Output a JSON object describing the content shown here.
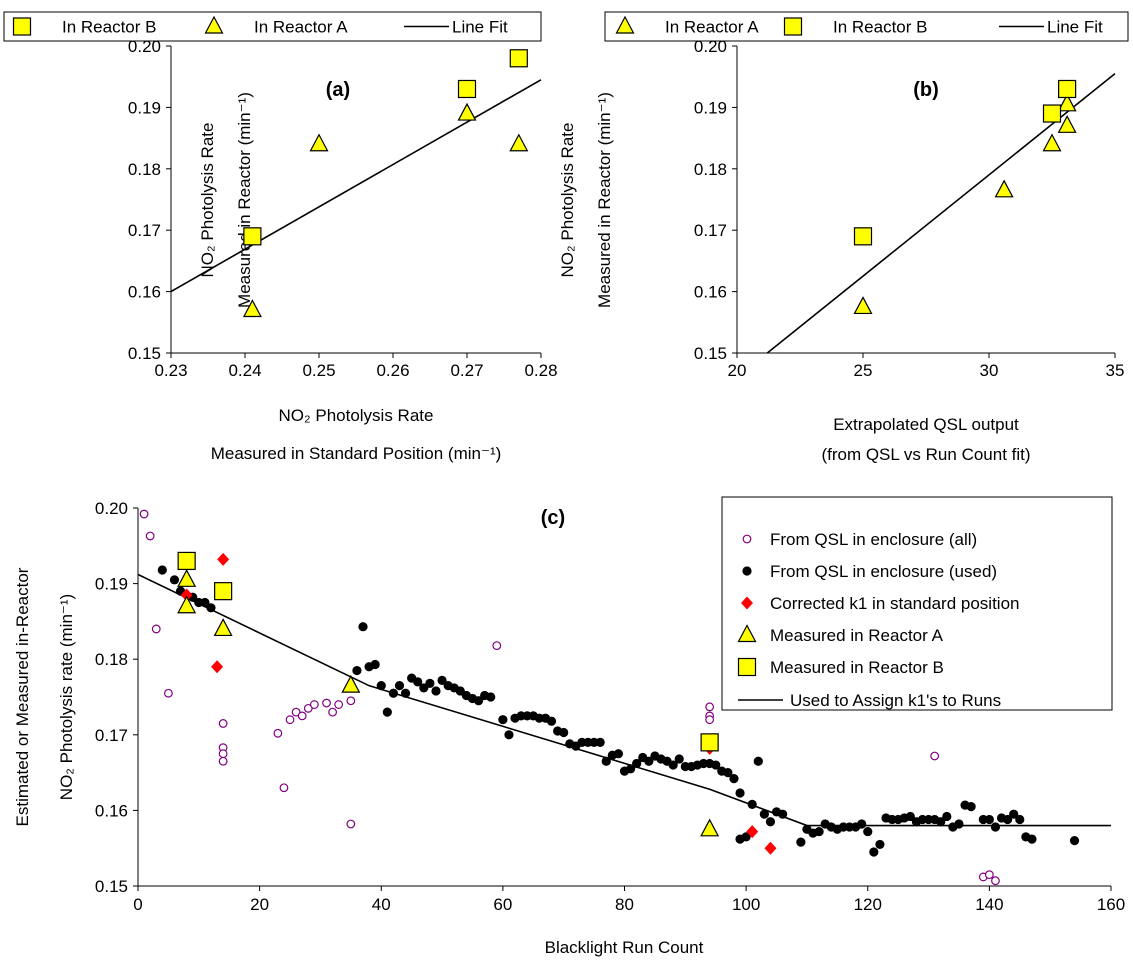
{
  "chart_data": [
    {
      "id": "a",
      "type": "scatter",
      "panel_label": "(a)",
      "xlabel": "NO₂ Photolysis Rate",
      "xlabel_line2": "Measured in Standard Position (min⁻¹)",
      "ylabel": "NO₂ Photolysis Rate",
      "ylabel_line2": "Measured in Reactor (min⁻¹)",
      "xlim": [
        0.23,
        0.28
      ],
      "ylim": [
        0.15,
        0.2
      ],
      "xticks": [
        "0.23",
        "0.24",
        "0.25",
        "0.26",
        "0.27",
        "0.28"
      ],
      "yticks": [
        "0.15",
        "0.16",
        "0.17",
        "0.18",
        "0.19",
        "0.20"
      ],
      "legend": [
        "In Reactor B",
        "In Reactor A",
        "Line Fit"
      ],
      "series": [
        {
          "name": "In Reactor B",
          "marker": "square",
          "color": "#ffff00",
          "points": [
            [
              0.241,
              0.169
            ],
            [
              0.27,
              0.193
            ],
            [
              0.277,
              0.198
            ]
          ]
        },
        {
          "name": "In Reactor A",
          "marker": "triangle",
          "color": "#ffff00",
          "points": [
            [
              0.241,
              0.157
            ],
            [
              0.25,
              0.184
            ],
            [
              0.27,
              0.189
            ],
            [
              0.277,
              0.184
            ]
          ]
        },
        {
          "name": "Line Fit",
          "marker": "line",
          "color": "#000000",
          "points": [
            [
              0.23,
              0.16
            ],
            [
              0.28,
              0.1945
            ]
          ]
        }
      ]
    },
    {
      "id": "b",
      "type": "scatter",
      "panel_label": "(b)",
      "xlabel": "Extrapolated QSL output",
      "xlabel_line2": "(from QSL vs Run Count fit)",
      "ylabel": "NO₂ Photolysis Rate",
      "ylabel_line2": "Measured in Reactor (min⁻¹)",
      "xlim": [
        20,
        35
      ],
      "ylim": [
        0.15,
        0.2
      ],
      "xticks": [
        "20",
        "25",
        "30",
        "35"
      ],
      "yticks": [
        "0.15",
        "0.16",
        "0.17",
        "0.18",
        "0.19",
        "0.20"
      ],
      "legend": [
        "In Reactor A",
        "In Reactor B",
        "Line Fit"
      ],
      "series": [
        {
          "name": "In Reactor A",
          "marker": "triangle",
          "color": "#ffff00",
          "points": [
            [
              25,
              0.1575
            ],
            [
              30.6,
              0.1765
            ],
            [
              32.5,
              0.184
            ],
            [
              33.1,
              0.187
            ],
            [
              33.1,
              0.1905
            ]
          ]
        },
        {
          "name": "In Reactor B",
          "marker": "square",
          "color": "#ffff00",
          "points": [
            [
              25,
              0.169
            ],
            [
              32.5,
              0.189
            ],
            [
              33.1,
              0.193
            ]
          ]
        },
        {
          "name": "Line Fit",
          "marker": "line",
          "color": "#000000",
          "points": [
            [
              20.9,
              0.149
            ],
            [
              35,
              0.1955
            ]
          ]
        }
      ]
    },
    {
      "id": "c",
      "type": "scatter",
      "panel_label": "(c)",
      "xlabel": "Blacklight Run Count",
      "ylabel": "Estimated or Measured in-Reactor",
      "ylabel_line2": "NO₂ Photolysis rate (min⁻¹)",
      "xlim": [
        0,
        160
      ],
      "ylim": [
        0.15,
        0.2
      ],
      "xticks": [
        "0",
        "20",
        "40",
        "60",
        "80",
        "100",
        "120",
        "140",
        "160"
      ],
      "yticks": [
        "0.15",
        "0.16",
        "0.17",
        "0.18",
        "0.19",
        "0.20"
      ],
      "legend": [
        "From QSL in enclosure (all)",
        "From QSL in enclosure (used)",
        "Corrected k1 in standard position",
        "Measured in Reactor A",
        "Measured in Reactor B",
        "Used to Assign k1's to Runs"
      ],
      "series": [
        {
          "name": "From QSL in enclosure (all)",
          "marker": "open-circle",
          "color": "#800080",
          "points": [
            [
              1,
              0.1992
            ],
            [
              2,
              0.1963
            ],
            [
              3,
              0.184
            ],
            [
              5,
              0.1755
            ],
            [
              14,
              0.1715
            ],
            [
              14,
              0.1683
            ],
            [
              14,
              0.1675
            ],
            [
              14,
              0.1665
            ],
            [
              23,
              0.1702
            ],
            [
              24,
              0.163
            ],
            [
              25,
              0.172
            ],
            [
              26,
              0.173
            ],
            [
              27,
              0.1725
            ],
            [
              28,
              0.1735
            ],
            [
              29,
              0.174
            ],
            [
              31,
              0.1742
            ],
            [
              32,
              0.173
            ],
            [
              33,
              0.174
            ],
            [
              35,
              0.1745
            ],
            [
              35,
              0.1582
            ],
            [
              59,
              0.1818
            ],
            [
              94,
              0.1737
            ],
            [
              94,
              0.1725
            ],
            [
              94,
              0.172
            ],
            [
              131,
              0.1672
            ],
            [
              139,
              0.1512
            ],
            [
              140,
              0.1515
            ],
            [
              141,
              0.1507
            ]
          ]
        },
        {
          "name": "From QSL in enclosure (used)",
          "marker": "filled-circle",
          "color": "#000000",
          "points": [
            [
              4,
              0.1918
            ],
            [
              6,
              0.1905
            ],
            [
              7,
              0.189
            ],
            [
              9,
              0.1882
            ],
            [
              10,
              0.1875
            ],
            [
              11,
              0.1875
            ],
            [
              12,
              0.1868
            ],
            [
              36,
              0.1785
            ],
            [
              37,
              0.1843
            ],
            [
              38,
              0.179
            ],
            [
              39,
              0.1793
            ],
            [
              40,
              0.1765
            ],
            [
              41,
              0.173
            ],
            [
              42,
              0.1755
            ],
            [
              43,
              0.1765
            ],
            [
              44,
              0.1755
            ],
            [
              45,
              0.1775
            ],
            [
              46,
              0.177
            ],
            [
              47,
              0.1762
            ],
            [
              48,
              0.1768
            ],
            [
              49,
              0.1758
            ],
            [
              50,
              0.1772
            ],
            [
              51,
              0.1765
            ],
            [
              52,
              0.1762
            ],
            [
              53,
              0.1758
            ],
            [
              54,
              0.1752
            ],
            [
              55,
              0.1748
            ],
            [
              56,
              0.1745
            ],
            [
              57,
              0.1752
            ],
            [
              58,
              0.175
            ],
            [
              60,
              0.172
            ],
            [
              61,
              0.17
            ],
            [
              62,
              0.1722
            ],
            [
              63,
              0.1725
            ],
            [
              64,
              0.1725
            ],
            [
              65,
              0.1725
            ],
            [
              66,
              0.1722
            ],
            [
              67,
              0.1722
            ],
            [
              68,
              0.1718
            ],
            [
              69,
              0.1705
            ],
            [
              70,
              0.1703
            ],
            [
              71,
              0.1688
            ],
            [
              72,
              0.1685
            ],
            [
              73,
              0.169
            ],
            [
              74,
              0.169
            ],
            [
              75,
              0.169
            ],
            [
              76,
              0.169
            ],
            [
              77,
              0.1665
            ],
            [
              78,
              0.1673
            ],
            [
              79,
              0.1675
            ],
            [
              80,
              0.1652
            ],
            [
              81,
              0.1655
            ],
            [
              82,
              0.1662
            ],
            [
              83,
              0.167
            ],
            [
              84,
              0.1665
            ],
            [
              85,
              0.1672
            ],
            [
              86,
              0.1668
            ],
            [
              87,
              0.1665
            ],
            [
              88,
              0.166
            ],
            [
              89,
              0.1668
            ],
            [
              90,
              0.1658
            ],
            [
              91,
              0.1658
            ],
            [
              92,
              0.166
            ],
            [
              93,
              0.1662
            ],
            [
              94,
              0.1662
            ],
            [
              95,
              0.166
            ],
            [
              96,
              0.1652
            ],
            [
              97,
              0.165
            ],
            [
              98,
              0.1642
            ],
            [
              99,
              0.1623
            ],
            [
              99,
              0.1562
            ],
            [
              100,
              0.1565
            ],
            [
              101,
              0.1608
            ],
            [
              102,
              0.1665
            ],
            [
              103,
              0.1595
            ],
            [
              104,
              0.1585
            ],
            [
              105,
              0.1598
            ],
            [
              106,
              0.1595
            ],
            [
              109,
              0.1558
            ],
            [
              110,
              0.1575
            ],
            [
              111,
              0.157
            ],
            [
              112,
              0.1572
            ],
            [
              113,
              0.1582
            ],
            [
              114,
              0.1578
            ],
            [
              115,
              0.1575
            ],
            [
              116,
              0.1578
            ],
            [
              117,
              0.1578
            ],
            [
              118,
              0.1578
            ],
            [
              119,
              0.1582
            ],
            [
              120,
              0.1572
            ],
            [
              121,
              0.1545
            ],
            [
              122,
              0.1555
            ],
            [
              123,
              0.159
            ],
            [
              124,
              0.1588
            ],
            [
              125,
              0.1588
            ],
            [
              126,
              0.159
            ],
            [
              127,
              0.1592
            ],
            [
              128,
              0.1585
            ],
            [
              129,
              0.1588
            ],
            [
              130,
              0.1588
            ],
            [
              131,
              0.1588
            ],
            [
              132,
              0.1585
            ],
            [
              133,
              0.1592
            ],
            [
              134,
              0.1578
            ],
            [
              135,
              0.1582
            ],
            [
              136,
              0.1607
            ],
            [
              137,
              0.1605
            ],
            [
              139,
              0.1588
            ],
            [
              140,
              0.1588
            ],
            [
              141,
              0.1578
            ],
            [
              142,
              0.159
            ],
            [
              143,
              0.1588
            ],
            [
              144,
              0.1595
            ],
            [
              145,
              0.1588
            ],
            [
              146,
              0.1565
            ],
            [
              147,
              0.1562
            ],
            [
              154,
              0.156
            ]
          ]
        },
        {
          "name": "Corrected k1 in standard position",
          "marker": "diamond",
          "color": "#ff0000",
          "points": [
            [
              8,
              0.1885
            ],
            [
              13,
              0.179
            ],
            [
              14,
              0.1932
            ],
            [
              14,
              0.184
            ],
            [
              94,
              0.1682
            ],
            [
              101,
              0.1572
            ],
            [
              104,
              0.155
            ]
          ]
        },
        {
          "name": "Measured in Reactor A",
          "marker": "triangle",
          "color": "#ffff00",
          "points": [
            [
              8,
              0.1905
            ],
            [
              8,
              0.187
            ],
            [
              14,
              0.184
            ],
            [
              35,
              0.1765
            ],
            [
              94,
              0.1575
            ]
          ]
        },
        {
          "name": "Measured in Reactor B",
          "marker": "square",
          "color": "#ffff00",
          "points": [
            [
              8,
              0.193
            ],
            [
              14,
              0.189
            ],
            [
              94,
              0.169
            ]
          ]
        },
        {
          "name": "Used to Assign k1's to Runs",
          "marker": "line",
          "color": "#000000",
          "points": [
            [
              0,
              0.1912
            ],
            [
              38,
              0.1765
            ],
            [
              94,
              0.1628
            ],
            [
              110,
              0.158
            ],
            [
              160,
              0.158
            ]
          ]
        }
      ]
    }
  ]
}
